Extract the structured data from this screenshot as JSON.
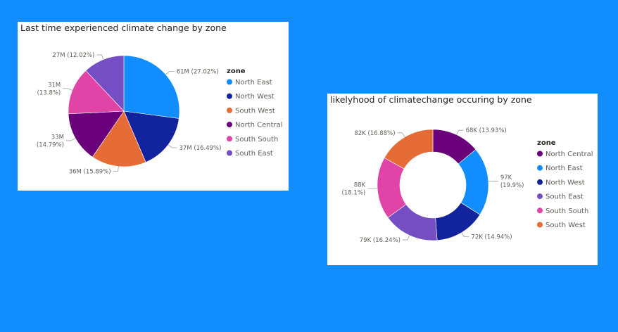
{
  "colors": {
    "background": "#118DFF",
    "card": "#FFFFFF"
  },
  "chart_data": [
    {
      "type": "pie",
      "title": "Last time experienced climate change by zone",
      "legend_title": "zone",
      "legend_position": "right",
      "legend": [
        {
          "name": "North East",
          "color": "#118DFF"
        },
        {
          "name": "North West",
          "color": "#12239E"
        },
        {
          "name": "South West",
          "color": "#E66C37"
        },
        {
          "name": "North Central",
          "color": "#6B007B"
        },
        {
          "name": "South South",
          "color": "#E044A7"
        },
        {
          "name": "South East",
          "color": "#744EC2"
        }
      ],
      "slices": [
        {
          "name": "North East",
          "value": 61,
          "color": "#118DFF",
          "label": [
            "61M (27.02%)"
          ]
        },
        {
          "name": "North West",
          "value": 37,
          "color": "#12239E",
          "label": [
            "37M (16.49%)"
          ]
        },
        {
          "name": "South West",
          "value": 36,
          "color": "#E66C37",
          "label": [
            "36M (15.89%)"
          ]
        },
        {
          "name": "North Central",
          "value": 33,
          "color": "#6B007B",
          "label": [
            "33M",
            "(14.79%)"
          ]
        },
        {
          "name": "South South",
          "value": 31,
          "color": "#E044A7",
          "label": [
            "31M",
            "(13.8%)"
          ]
        },
        {
          "name": "South East",
          "value": 27,
          "color": "#744EC2",
          "label": [
            "27M (12.02%)"
          ]
        }
      ]
    },
    {
      "type": "donut",
      "title": "likelyhood of climatechange occuring by zone",
      "legend_title": "zone",
      "legend_position": "right",
      "legend": [
        {
          "name": "North Central",
          "color": "#6B007B"
        },
        {
          "name": "North East",
          "color": "#118DFF"
        },
        {
          "name": "North West",
          "color": "#12239E"
        },
        {
          "name": "South East",
          "color": "#744EC2"
        },
        {
          "name": "South South",
          "color": "#E044A7"
        },
        {
          "name": "South West",
          "color": "#E66C37"
        }
      ],
      "slices": [
        {
          "name": "North Central",
          "value": 68,
          "color": "#6B007B",
          "label": [
            "68K (13.93%)"
          ]
        },
        {
          "name": "North East",
          "value": 97,
          "color": "#118DFF",
          "label": [
            "97K",
            "(19.9%)"
          ]
        },
        {
          "name": "North West",
          "value": 72,
          "color": "#12239E",
          "label": [
            "72K (14.94%)"
          ]
        },
        {
          "name": "South East",
          "value": 79,
          "color": "#744EC2",
          "label": [
            "79K (16.24%)"
          ]
        },
        {
          "name": "South South",
          "value": 88,
          "color": "#E044A7",
          "label": [
            "88K",
            "(18.1%)"
          ]
        },
        {
          "name": "South West",
          "value": 82,
          "color": "#E66C37",
          "label": [
            "82K (16.88%)"
          ]
        }
      ]
    }
  ]
}
